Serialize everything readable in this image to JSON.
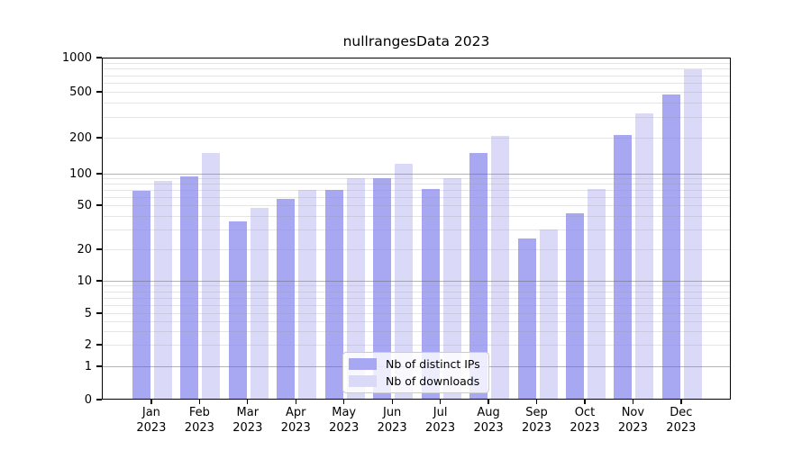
{
  "title": "nullrangesData 2023",
  "colors": {
    "distinct_ips": "#a7a7f2",
    "downloads": "#dadaf8",
    "spine": "#000000",
    "grid_major": "#b0b0b0",
    "grid_minor": "#e5e5e5",
    "legend_border": "#cccccc"
  },
  "chart_data": {
    "type": "bar",
    "title": "nullrangesData 2023",
    "categories": [
      "Jan 2023",
      "Feb 2023",
      "Mar 2023",
      "Apr 2023",
      "May 2023",
      "Jun 2023",
      "Jul 2023",
      "Aug 2023",
      "Sep 2023",
      "Oct 2023",
      "Nov 2023",
      "Dec 2023"
    ],
    "series": [
      {
        "name": "Nb of distinct IPs",
        "color": "#a7a7f2",
        "values": [
          68,
          95,
          36,
          57,
          70,
          90,
          72,
          148,
          25,
          42,
          210,
          470
        ]
      },
      {
        "name": "Nb of downloads",
        "color": "#dadaf8",
        "values": [
          86,
          150,
          47,
          70,
          91,
          120,
          90,
          208,
          30,
          72,
          325,
          790
        ]
      }
    ],
    "xlabel": "",
    "ylabel": "",
    "yticks": [
      0,
      1,
      2,
      5,
      10,
      20,
      50,
      100,
      200,
      500,
      1000
    ],
    "ylim": [
      0,
      1000
    ],
    "yscale": "log (with 0 shown at baseline)",
    "grid": true,
    "grid_on_top_of_bars": true,
    "legend_position": "inside bottom-center"
  }
}
